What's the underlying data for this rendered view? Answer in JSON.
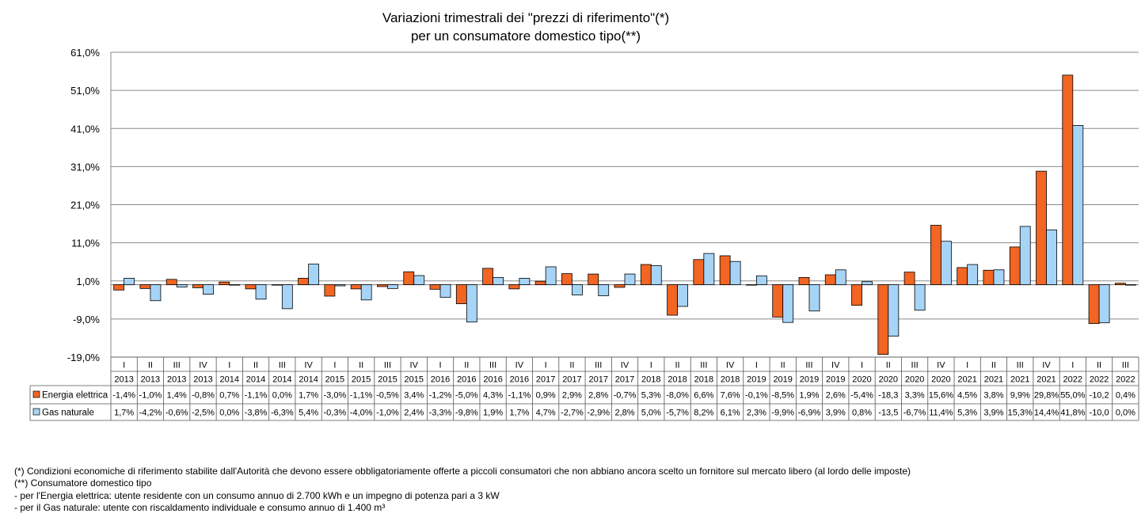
{
  "chart_data": {
    "type": "bar",
    "title_lines": [
      "Variazioni trimestrali dei \"prezzi di riferimento\"(*)",
      "per un consumatore domestico tipo(**)"
    ],
    "y_ticks": [
      61,
      51,
      41,
      31,
      21,
      11,
      1,
      -9,
      -19
    ],
    "y_tick_labels": [
      "61,0%",
      "51,0%",
      "41,0%",
      "31,0%",
      "21,0%",
      "11,0%",
      "1,0%",
      "-9,0%",
      "-19,0%"
    ],
    "ylim": [
      -19,
      61
    ],
    "baseline": 0,
    "grid": true,
    "categories_quarter": [
      "I",
      "II",
      "III",
      "IV",
      "I",
      "II",
      "III",
      "IV",
      "I",
      "II",
      "III",
      "IV",
      "I",
      "II",
      "III",
      "IV",
      "I",
      "II",
      "III",
      "IV",
      "I",
      "II",
      "III",
      "IV",
      "I",
      "II",
      "III",
      "IV",
      "I",
      "II",
      "III",
      "IV",
      "I",
      "II",
      "III",
      "IV",
      "I",
      "II",
      "III"
    ],
    "categories_year": [
      "2013",
      "2013",
      "2013",
      "2013",
      "2014",
      "2014",
      "2014",
      "2014",
      "2015",
      "2015",
      "2015",
      "2015",
      "2016",
      "2016",
      "2016",
      "2016",
      "2017",
      "2017",
      "2017",
      "2017",
      "2018",
      "2018",
      "2018",
      "2018",
      "2019",
      "2019",
      "2019",
      "2019",
      "2020",
      "2020",
      "2020",
      "2020",
      "2021",
      "2021",
      "2021",
      "2021",
      "2022",
      "2022",
      "2022"
    ],
    "series": [
      {
        "name": "Energia elettrica",
        "color": "#f26522",
        "values": [
          -1.4,
          -1.0,
          1.4,
          -0.8,
          0.7,
          -1.1,
          0.0,
          1.7,
          -3.0,
          -1.1,
          -0.5,
          3.4,
          -1.2,
          -5.0,
          4.3,
          -1.1,
          0.9,
          2.9,
          2.8,
          -0.7,
          5.3,
          -8.0,
          6.6,
          7.6,
          -0.1,
          -8.5,
          1.9,
          2.6,
          -5.4,
          -18.3,
          3.3,
          15.6,
          4.5,
          3.8,
          9.9,
          29.8,
          55.0,
          -10.2,
          0.4
        ],
        "labels": [
          "-1,4%",
          "-1,0%",
          "1,4%",
          "-0,8%",
          "0,7%",
          "-1,1%",
          "0,0%",
          "1,7%",
          "-3,0%",
          "-1,1%",
          "-0,5%",
          "3,4%",
          "-1,2%",
          "-5,0%",
          "4,3%",
          "-1,1%",
          "0,9%",
          "2,9%",
          "2,8%",
          "-0,7%",
          "5,3%",
          "-8,0%",
          "6,6%",
          "7,6%",
          "-0,1%",
          "-8,5%",
          "1,9%",
          "2,6%",
          "-5,4%",
          "-18,3",
          "3,3%",
          "15,6%",
          "4,5%",
          "3,8%",
          "9,9%",
          "29,8%",
          "55,0%",
          "-10,2",
          "0,4%"
        ]
      },
      {
        "name": "Gas naturale",
        "color": "#a6d4f7",
        "values": [
          1.7,
          -4.2,
          -0.6,
          -2.5,
          0.0,
          -3.8,
          -6.3,
          5.4,
          -0.3,
          -4.0,
          -1.0,
          2.4,
          -3.3,
          -9.8,
          1.9,
          1.7,
          4.7,
          -2.7,
          -2.9,
          2.8,
          5.0,
          -5.7,
          8.2,
          6.1,
          2.3,
          -9.9,
          -6.9,
          3.9,
          0.8,
          -13.5,
          -6.7,
          11.4,
          5.3,
          3.9,
          15.3,
          14.4,
          41.8,
          -10.0,
          0.0
        ],
        "labels": [
          "1,7%",
          "-4,2%",
          "-0,6%",
          "-2,5%",
          "0,0%",
          "-3,8%",
          "-6,3%",
          "5,4%",
          "-0,3%",
          "-4,0%",
          "-1,0%",
          "2,4%",
          "-3,3%",
          "-9,8%",
          "1,9%",
          "1,7%",
          "4,7%",
          "-2,7%",
          "-2,9%",
          "2,8%",
          "5,0%",
          "-5,7%",
          "8,2%",
          "6,1%",
          "2,3%",
          "-9,9%",
          "-6,9%",
          "3,9%",
          "0,8%",
          "-13,5",
          "-6,7%",
          "11,4%",
          "5,3%",
          "3,9%",
          "15,3%",
          "14,4%",
          "41,8%",
          "-10,0",
          "0,0%"
        ]
      }
    ]
  },
  "footnotes": [
    "(*) Condizioni economiche di riferimento stabilite dall'Autorità che devono essere obbligatoriamente offerte a piccoli consumatori che non abbiano ancora scelto un fornitore sul mercato libero (al lordo delle imposte)",
    "(**) Consumatore domestico tipo",
    "- per l'Energia elettrica: utente residente con un consumo annuo di 2.700 kWh e un impegno di potenza pari a 3 kW",
    "- per il Gas naturale: utente con riscaldamento individuale e consumo annuo di 1.400 m³"
  ]
}
